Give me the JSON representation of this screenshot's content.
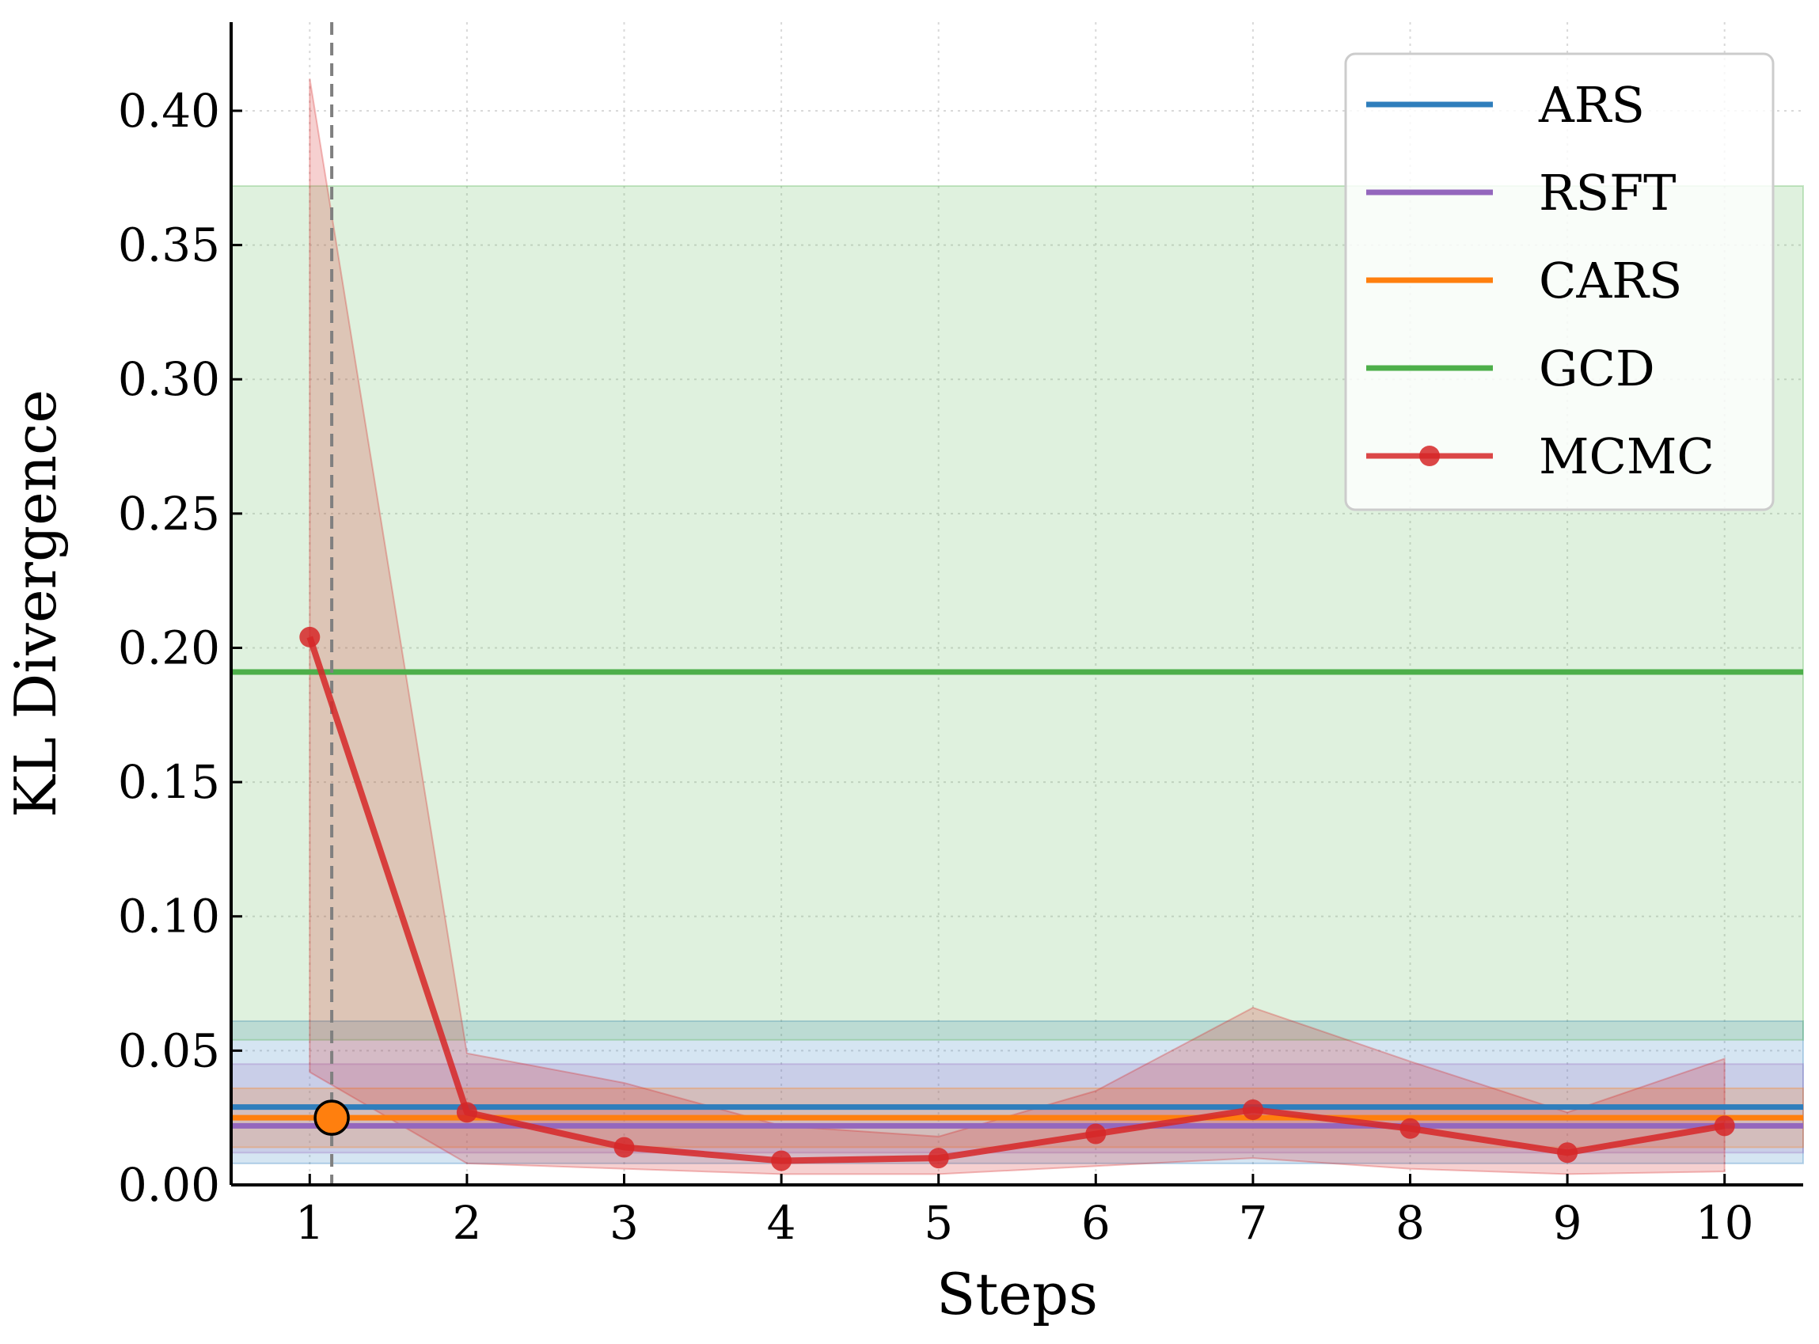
{
  "chart_data": {
    "type": "line",
    "title": "",
    "xlabel": "Steps",
    "ylabel": "KL Divergence",
    "x": [
      1,
      2,
      3,
      4,
      5,
      6,
      7,
      8,
      9,
      10
    ],
    "xlim": [
      0.5,
      10.5
    ],
    "ylim": [
      0,
      0.433
    ],
    "yticks": [
      0.0,
      0.05,
      0.1,
      0.15,
      0.2,
      0.25,
      0.3,
      0.35,
      0.4
    ],
    "ytick_labels": [
      "0.00",
      "0.05",
      "0.10",
      "0.15",
      "0.20",
      "0.25",
      "0.30",
      "0.35",
      "0.40"
    ],
    "xtick_labels": [
      "1",
      "2",
      "3",
      "4",
      "5",
      "6",
      "7",
      "8",
      "9",
      "10"
    ],
    "grid": true,
    "legend_position": "top-right",
    "baselines": [
      {
        "name": "ARS",
        "color": "#2f7ebc",
        "value": 0.029,
        "band": [
          0.008,
          0.061
        ]
      },
      {
        "name": "RSFT",
        "color": "#9467bd",
        "value": 0.022,
        "band": [
          0.012,
          0.045
        ]
      },
      {
        "name": "CARS",
        "color": "#ff7f0e",
        "value": 0.025,
        "band": [
          0.014,
          0.036
        ]
      },
      {
        "name": "GCD",
        "color": "#4daf4a",
        "value": 0.191,
        "band": [
          0.054,
          0.372
        ]
      }
    ],
    "series": [
      {
        "name": "MCMC",
        "color": "#d62728",
        "values": [
          0.204,
          0.027,
          0.014,
          0.009,
          0.01,
          0.019,
          0.028,
          0.021,
          0.012,
          0.022
        ],
        "lower": [
          0.042,
          0.008,
          0.006,
          0.004,
          0.004,
          0.007,
          0.01,
          0.006,
          0.004,
          0.005
        ],
        "upper": [
          0.412,
          0.049,
          0.038,
          0.022,
          0.018,
          0.035,
          0.066,
          0.046,
          0.027,
          0.047
        ]
      }
    ],
    "vline": {
      "x": 1.14,
      "style": "dashed",
      "color": "#808080"
    },
    "marker": {
      "x": 1.14,
      "y": 0.025,
      "color": "#ff7f0e"
    }
  }
}
